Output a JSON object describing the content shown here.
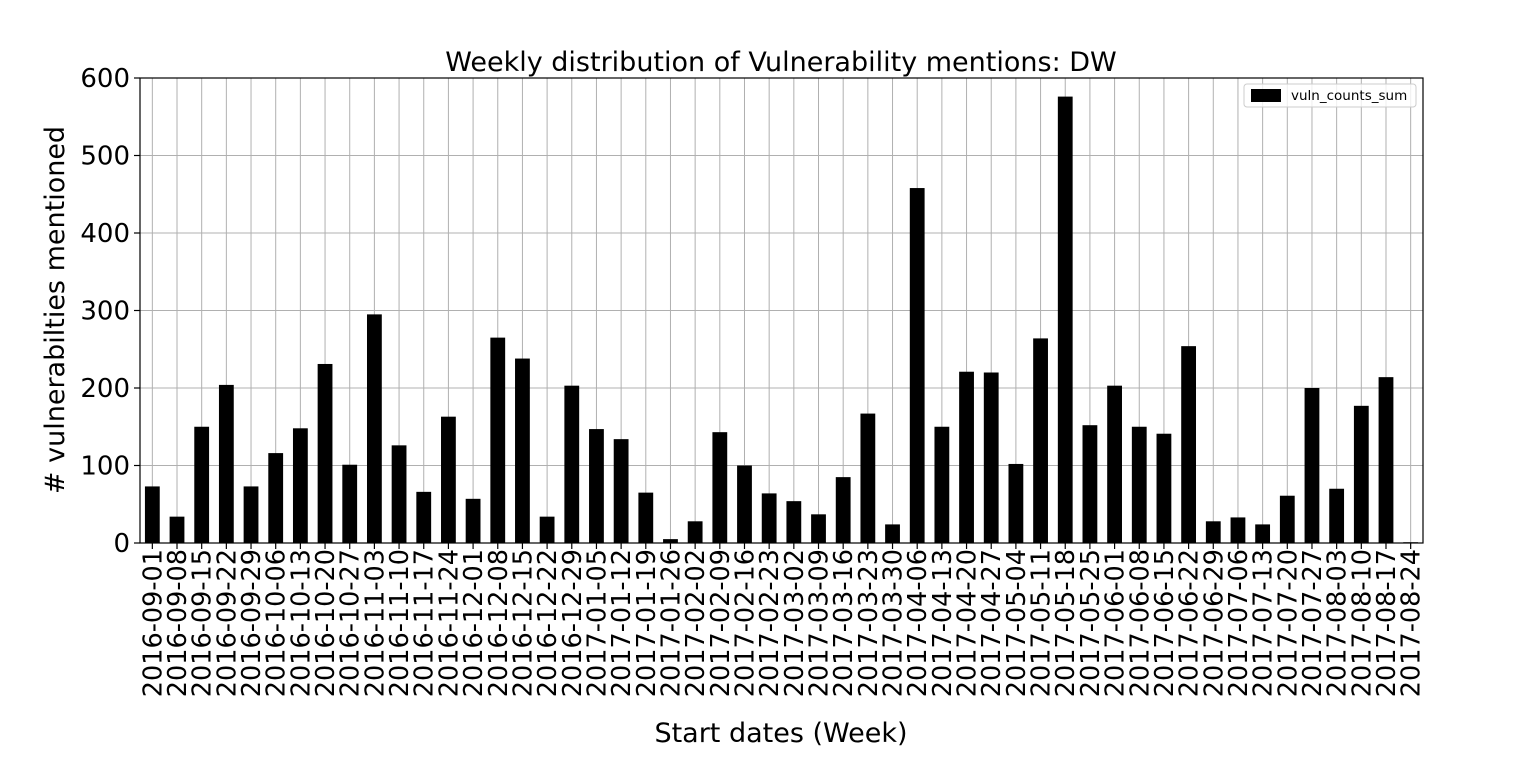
{
  "chart_data": {
    "type": "bar",
    "title": "Weekly distribution of Vulnerability mentions: DW",
    "xlabel": "Start dates (Week)",
    "ylabel": "# vulnerabilties mentioned",
    "ylim": [
      0,
      600
    ],
    "yticks": [
      0,
      100,
      200,
      300,
      400,
      500,
      600
    ],
    "grid": true,
    "legend_position": "top-right",
    "bar_color": "#000000",
    "categories": [
      "2016-09-01",
      "2016-09-08",
      "2016-09-15",
      "2016-09-22",
      "2016-09-29",
      "2016-10-06",
      "2016-10-13",
      "2016-10-20",
      "2016-10-27",
      "2016-11-03",
      "2016-11-10",
      "2016-11-17",
      "2016-11-24",
      "2016-12-01",
      "2016-12-08",
      "2016-12-15",
      "2016-12-22",
      "2016-12-29",
      "2017-01-05",
      "2017-01-12",
      "2017-01-19",
      "2017-01-26",
      "2017-02-02",
      "2017-02-09",
      "2017-02-16",
      "2017-02-23",
      "2017-03-02",
      "2017-03-09",
      "2017-03-16",
      "2017-03-23",
      "2017-03-30",
      "2017-04-06",
      "2017-04-13",
      "2017-04-20",
      "2017-04-27",
      "2017-05-04",
      "2017-05-11",
      "2017-05-18",
      "2017-05-25",
      "2017-06-01",
      "2017-06-08",
      "2017-06-15",
      "2017-06-22",
      "2017-06-29",
      "2017-07-06",
      "2017-07-13",
      "2017-07-20",
      "2017-07-27",
      "2017-08-03",
      "2017-08-10",
      "2017-08-17",
      "2017-08-24"
    ],
    "series": [
      {
        "name": "vuln_counts_sum",
        "values": [
          73,
          34,
          150,
          204,
          73,
          116,
          148,
          231,
          101,
          295,
          126,
          66,
          163,
          57,
          265,
          238,
          34,
          203,
          147,
          134,
          65,
          5,
          28,
          143,
          100,
          64,
          54,
          37,
          85,
          167,
          24,
          458,
          150,
          221,
          220,
          102,
          264,
          576,
          152,
          203,
          150,
          141,
          254,
          28,
          33,
          24,
          61,
          200,
          70,
          177,
          214,
          1
        ]
      }
    ]
  }
}
